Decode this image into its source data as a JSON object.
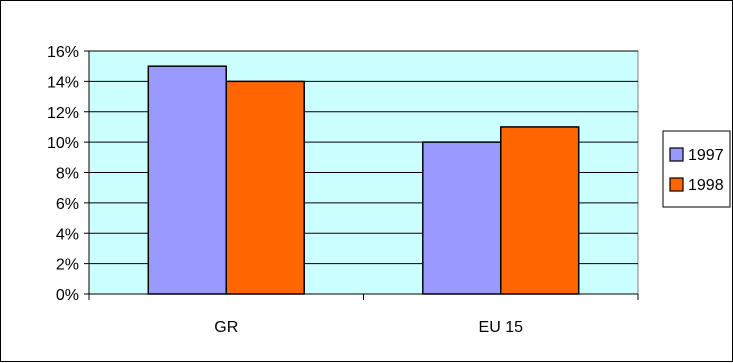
{
  "chart_data": {
    "type": "bar",
    "title": "",
    "xlabel": "",
    "ylabel": "",
    "categories": [
      "GR",
      "EU 15"
    ],
    "series": [
      {
        "name": "1997",
        "values": [
          15,
          10
        ],
        "color": "#9999ff"
      },
      {
        "name": "1998",
        "values": [
          14,
          11
        ],
        "color": "#ff6600"
      }
    ],
    "ylim": [
      0,
      16
    ],
    "y_ticks": [
      0,
      2,
      4,
      6,
      8,
      10,
      12,
      14,
      16
    ],
    "y_tick_labels": [
      "0%",
      "2%",
      "4%",
      "6%",
      "8%",
      "10%",
      "12%",
      "14%",
      "16%"
    ],
    "y_unit": "%",
    "grid": true,
    "plot_background": "#ccffff",
    "legend_position": "right"
  }
}
